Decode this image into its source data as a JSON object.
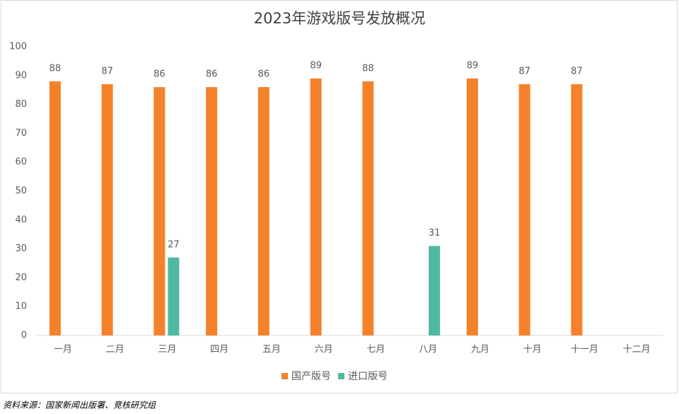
{
  "chart_data": {
    "type": "bar",
    "title": "2023年游戏版号发放概况",
    "categories": [
      "一月",
      "二月",
      "三月",
      "四月",
      "五月",
      "六月",
      "七月",
      "八月",
      "九月",
      "十月",
      "十一月",
      "十二月"
    ],
    "series": [
      {
        "name": "国产版号",
        "color": "#f5822a",
        "values": [
          88,
          87,
          86,
          86,
          86,
          89,
          88,
          null,
          89,
          87,
          87,
          null
        ]
      },
      {
        "name": "进口版号",
        "color": "#4fb8a0",
        "values": [
          null,
          null,
          27,
          null,
          null,
          null,
          null,
          31,
          null,
          null,
          null,
          null
        ]
      }
    ],
    "ylim": [
      0,
      100
    ],
    "yticks": [
      0,
      10,
      20,
      30,
      40,
      50,
      60,
      70,
      80,
      90,
      100
    ],
    "grid": false,
    "legend": "bottom"
  },
  "source": "资料来源：国家新闻出版署、竞核研究组"
}
